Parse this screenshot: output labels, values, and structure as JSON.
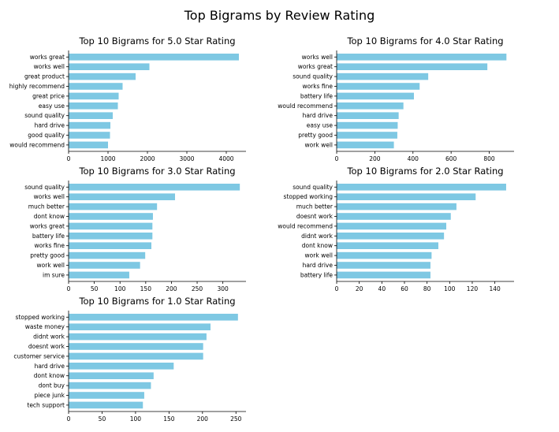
{
  "suptitle": "Top Bigrams by Review Rating",
  "colors": {
    "bar": "#7ec8e3",
    "axis": "#000000"
  },
  "chart_data": [
    {
      "type": "bar",
      "orientation": "horizontal",
      "title": "Top 10 Bigrams for 5.0 Star Rating",
      "categories": [
        "works great",
        "works well",
        "great product",
        "highly recommend",
        "great price",
        "easy use",
        "sound quality",
        "hard drive",
        "good quality",
        "would recommend"
      ],
      "values": [
        4320,
        2050,
        1700,
        1370,
        1270,
        1250,
        1120,
        1060,
        1050,
        1000
      ],
      "xlim": [
        0,
        4500
      ],
      "xticks": [
        0,
        1000,
        2000,
        3000,
        4000
      ],
      "grid": false
    },
    {
      "type": "bar",
      "orientation": "horizontal",
      "title": "Top 10 Bigrams for 4.0 Star Rating",
      "categories": [
        "works well",
        "works great",
        "sound quality",
        "works fine",
        "battery life",
        "would recommend",
        "hard drive",
        "easy use",
        "pretty good",
        "work well"
      ],
      "values": [
        890,
        790,
        480,
        435,
        405,
        350,
        325,
        320,
        318,
        300
      ],
      "xlim": [
        0,
        930
      ],
      "xticks": [
        0,
        200,
        400,
        600,
        800
      ],
      "grid": false
    },
    {
      "type": "bar",
      "orientation": "horizontal",
      "title": "Top 10 Bigrams for 3.0 Star Rating",
      "categories": [
        "sound quality",
        "works well",
        "much better",
        "dont know",
        "works great",
        "battery life",
        "works fine",
        "pretty good",
        "work well",
        "im sure"
      ],
      "values": [
        333,
        207,
        172,
        164,
        163,
        163,
        161,
        149,
        139,
        118
      ],
      "xlim": [
        0,
        345
      ],
      "xticks": [
        0,
        50,
        100,
        150,
        200,
        250,
        300
      ],
      "grid": false
    },
    {
      "type": "bar",
      "orientation": "horizontal",
      "title": "Top 10 Bigrams for 2.0 Star Rating",
      "categories": [
        "sound quality",
        "stopped working",
        "much better",
        "doesnt work",
        "would recommend",
        "didnt work",
        "dont know",
        "work well",
        "hard drive",
        "battery life"
      ],
      "values": [
        150,
        123,
        106,
        101,
        97,
        95,
        90,
        84,
        83,
        83
      ],
      "xlim": [
        0,
        157
      ],
      "xticks": [
        0,
        20,
        40,
        60,
        80,
        100,
        120,
        140
      ],
      "grid": false
    },
    {
      "type": "bar",
      "orientation": "horizontal",
      "title": "Top 10 Bigrams for 1.0 Star Rating",
      "categories": [
        "stopped working",
        "waste money",
        "didnt work",
        "doesnt work",
        "customer service",
        "hard drive",
        "dont know",
        "dont buy",
        "piece junk",
        "tech support"
      ],
      "values": [
        253,
        212,
        206,
        201,
        201,
        157,
        127,
        123,
        113,
        111
      ],
      "xlim": [
        0,
        265
      ],
      "xticks": [
        0,
        50,
        100,
        150,
        200,
        250
      ],
      "grid": false
    }
  ]
}
